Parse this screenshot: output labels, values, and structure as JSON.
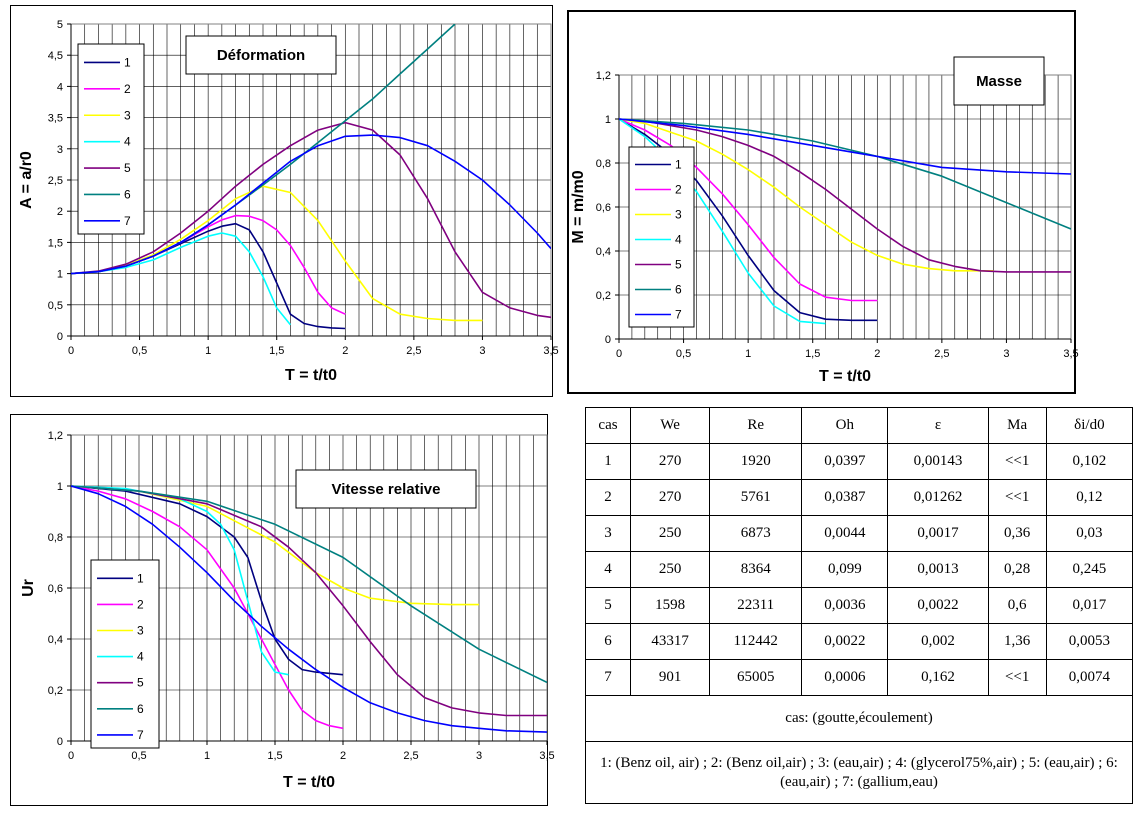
{
  "chart_data": [
    {
      "type": "line",
      "title": "Déformation",
      "xlabel": "T = t/t0",
      "ylabel": "A = a/r0",
      "xlim": [
        0,
        3.5
      ],
      "ylim": [
        0,
        5
      ],
      "xticks": [
        "0",
        "0,5",
        "1",
        "1,5",
        "2",
        "2,5",
        "3",
        "3,5"
      ],
      "yticks": [
        "0",
        "0,5",
        "1",
        "1,5",
        "2",
        "2,5",
        "3",
        "3,5",
        "4",
        "4,5",
        "5"
      ],
      "legend": "top-left",
      "grid": true,
      "series": [
        {
          "name": "1",
          "color": "#000080",
          "x": [
            0,
            0.2,
            0.4,
            0.6,
            0.8,
            1.0,
            1.1,
            1.2,
            1.3,
            1.4,
            1.5,
            1.6,
            1.7,
            1.8,
            1.9,
            2.0
          ],
          "y": [
            1,
            1.03,
            1.12,
            1.28,
            1.48,
            1.68,
            1.76,
            1.8,
            1.7,
            1.35,
            0.85,
            0.35,
            0.2,
            0.15,
            0.13,
            0.12
          ]
        },
        {
          "name": "2",
          "color": "#ff00ff",
          "x": [
            0,
            0.2,
            0.4,
            0.6,
            0.8,
            1.0,
            1.1,
            1.2,
            1.3,
            1.4,
            1.5,
            1.6,
            1.7,
            1.8,
            1.9,
            2.0
          ],
          "y": [
            1,
            1.03,
            1.12,
            1.28,
            1.5,
            1.75,
            1.86,
            1.93,
            1.92,
            1.85,
            1.7,
            1.45,
            1.1,
            0.7,
            0.45,
            0.35
          ]
        },
        {
          "name": "3",
          "color": "#ffff00",
          "x": [
            0,
            0.2,
            0.4,
            0.6,
            0.8,
            1.0,
            1.2,
            1.4,
            1.6,
            1.8,
            2.0,
            2.2,
            2.4,
            2.6,
            2.8,
            3.0
          ],
          "y": [
            1,
            1.03,
            1.13,
            1.3,
            1.55,
            1.85,
            2.2,
            2.4,
            2.3,
            1.85,
            1.2,
            0.6,
            0.35,
            0.28,
            0.25,
            0.25
          ]
        },
        {
          "name": "4",
          "color": "#00ffff",
          "x": [
            0,
            0.2,
            0.4,
            0.6,
            0.8,
            1.0,
            1.1,
            1.2,
            1.3,
            1.4,
            1.5,
            1.6
          ],
          "y": [
            1,
            1.03,
            1.1,
            1.22,
            1.42,
            1.6,
            1.65,
            1.6,
            1.35,
            0.95,
            0.45,
            0.18
          ]
        },
        {
          "name": "5",
          "color": "#800080",
          "x": [
            0,
            0.2,
            0.4,
            0.6,
            0.8,
            1.0,
            1.2,
            1.4,
            1.6,
            1.8,
            2.0,
            2.2,
            2.4,
            2.6,
            2.8,
            3.0,
            3.2,
            3.4,
            3.5
          ],
          "y": [
            1,
            1.04,
            1.15,
            1.35,
            1.65,
            2.0,
            2.4,
            2.75,
            3.05,
            3.3,
            3.42,
            3.3,
            2.9,
            2.2,
            1.35,
            0.7,
            0.45,
            0.33,
            0.3
          ]
        },
        {
          "name": "6",
          "color": "#008080",
          "x": [
            0,
            0.2,
            0.4,
            0.6,
            0.8,
            1.0,
            1.2,
            1.4,
            1.6,
            1.8,
            2.0,
            2.2,
            2.4,
            2.6,
            2.8
          ],
          "y": [
            1,
            1.03,
            1.12,
            1.28,
            1.5,
            1.78,
            2.1,
            2.42,
            2.75,
            3.1,
            3.45,
            3.8,
            4.2,
            4.6,
            5.0
          ]
        },
        {
          "name": "7",
          "color": "#0000ff",
          "x": [
            0,
            0.2,
            0.4,
            0.6,
            0.8,
            1.0,
            1.2,
            1.4,
            1.6,
            1.8,
            2.0,
            2.2,
            2.4,
            2.6,
            2.8,
            3.0,
            3.2,
            3.4,
            3.5
          ],
          "y": [
            1,
            1.03,
            1.12,
            1.28,
            1.5,
            1.78,
            2.1,
            2.45,
            2.8,
            3.05,
            3.2,
            3.22,
            3.18,
            3.05,
            2.8,
            2.5,
            2.1,
            1.65,
            1.4
          ]
        }
      ]
    },
    {
      "type": "line",
      "title": "Masse",
      "xlabel": "T = t/t0",
      "ylabel": "M = m/m0",
      "xlim": [
        0,
        3.5
      ],
      "ylim": [
        0,
        1.2
      ],
      "xticks": [
        "0",
        "0,5",
        "1",
        "1,5",
        "2",
        "2,5",
        "3",
        "3,5"
      ],
      "yticks": [
        "0",
        "0,2",
        "0,4",
        "0,6",
        "0,8",
        "1",
        "1,2"
      ],
      "legend": "bottom-left",
      "grid": true,
      "series": [
        {
          "name": "1",
          "color": "#000080",
          "x": [
            0,
            0.2,
            0.4,
            0.6,
            0.8,
            1.0,
            1.2,
            1.4,
            1.6,
            1.8,
            2.0
          ],
          "y": [
            1,
            0.93,
            0.84,
            0.72,
            0.56,
            0.38,
            0.22,
            0.12,
            0.09,
            0.085,
            0.085
          ]
        },
        {
          "name": "2",
          "color": "#ff00ff",
          "x": [
            0,
            0.2,
            0.4,
            0.6,
            0.8,
            1.0,
            1.2,
            1.4,
            1.6,
            1.8,
            2.0
          ],
          "y": [
            1,
            0.95,
            0.88,
            0.78,
            0.66,
            0.52,
            0.37,
            0.25,
            0.19,
            0.175,
            0.175
          ]
        },
        {
          "name": "3",
          "color": "#ffff00",
          "x": [
            0,
            0.2,
            0.4,
            0.6,
            0.8,
            1.0,
            1.2,
            1.4,
            1.6,
            1.8,
            2.0,
            2.2,
            2.4,
            2.6,
            2.8,
            2.9
          ],
          "y": [
            1,
            0.98,
            0.94,
            0.9,
            0.84,
            0.77,
            0.69,
            0.6,
            0.52,
            0.44,
            0.38,
            0.34,
            0.32,
            0.31,
            0.31,
            0.31
          ]
        },
        {
          "name": "4",
          "color": "#00ffff",
          "x": [
            0,
            0.2,
            0.4,
            0.6,
            0.8,
            1.0,
            1.2,
            1.4,
            1.6
          ],
          "y": [
            1,
            0.92,
            0.81,
            0.67,
            0.49,
            0.3,
            0.15,
            0.08,
            0.07
          ]
        },
        {
          "name": "5",
          "color": "#800080",
          "x": [
            0,
            0.2,
            0.4,
            0.6,
            0.8,
            1.0,
            1.2,
            1.4,
            1.6,
            1.8,
            2.0,
            2.2,
            2.4,
            2.6,
            2.8,
            3.0,
            3.2,
            3.5
          ],
          "y": [
            1,
            0.99,
            0.97,
            0.95,
            0.92,
            0.88,
            0.83,
            0.76,
            0.68,
            0.59,
            0.5,
            0.42,
            0.36,
            0.33,
            0.31,
            0.305,
            0.305,
            0.305
          ]
        },
        {
          "name": "6",
          "color": "#008080",
          "x": [
            0,
            0.5,
            1.0,
            1.5,
            2.0,
            2.5,
            3.0,
            3.5
          ],
          "y": [
            1,
            0.98,
            0.95,
            0.9,
            0.83,
            0.74,
            0.62,
            0.5
          ]
        },
        {
          "name": "7",
          "color": "#0000ff",
          "x": [
            0,
            0.5,
            1.0,
            1.5,
            2.0,
            2.5,
            3.0,
            3.5
          ],
          "y": [
            1,
            0.97,
            0.93,
            0.88,
            0.83,
            0.78,
            0.76,
            0.75
          ]
        }
      ]
    },
    {
      "type": "line",
      "title": "Vitesse relative",
      "xlabel": "T = t/t0",
      "ylabel": "Ur",
      "xlim": [
        0,
        3.5
      ],
      "ylim": [
        0,
        1.2
      ],
      "xticks": [
        "0",
        "0,5",
        "1",
        "1,5",
        "2",
        "2,5",
        "3",
        "3,5"
      ],
      "yticks": [
        "0",
        "0,2",
        "0,4",
        "0,6",
        "0,8",
        "1",
        "1,2"
      ],
      "legend": "bottom-left",
      "grid": true,
      "series": [
        {
          "name": "1",
          "color": "#000080",
          "x": [
            0,
            0.4,
            0.8,
            1.0,
            1.2,
            1.3,
            1.4,
            1.5,
            1.6,
            1.7,
            1.8,
            2.0
          ],
          "y": [
            1,
            0.98,
            0.93,
            0.88,
            0.8,
            0.72,
            0.55,
            0.4,
            0.32,
            0.28,
            0.27,
            0.26
          ]
        },
        {
          "name": "2",
          "color": "#ff00ff",
          "x": [
            0,
            0.2,
            0.4,
            0.6,
            0.8,
            1.0,
            1.2,
            1.3,
            1.4,
            1.5,
            1.6,
            1.7,
            1.8,
            1.9,
            2.0
          ],
          "y": [
            1,
            0.98,
            0.95,
            0.9,
            0.84,
            0.75,
            0.6,
            0.5,
            0.4,
            0.3,
            0.2,
            0.12,
            0.08,
            0.06,
            0.05
          ]
        },
        {
          "name": "3",
          "color": "#ffff00",
          "x": [
            0,
            0.5,
            1.0,
            1.5,
            1.8,
            2.0,
            2.2,
            2.5,
            2.8,
            3.0
          ],
          "y": [
            1,
            0.98,
            0.92,
            0.78,
            0.66,
            0.6,
            0.56,
            0.54,
            0.535,
            0.535
          ]
        },
        {
          "name": "4",
          "color": "#00ffff",
          "x": [
            0,
            0.4,
            0.8,
            1.0,
            1.1,
            1.2,
            1.3,
            1.4,
            1.5,
            1.6
          ],
          "y": [
            1,
            0.99,
            0.95,
            0.9,
            0.85,
            0.75,
            0.55,
            0.35,
            0.27,
            0.26
          ]
        },
        {
          "name": "5",
          "color": "#800080",
          "x": [
            0,
            0.5,
            1.0,
            1.4,
            1.6,
            1.8,
            2.0,
            2.2,
            2.4,
            2.6,
            2.8,
            3.0,
            3.2,
            3.5
          ],
          "y": [
            1,
            0.98,
            0.93,
            0.84,
            0.76,
            0.66,
            0.53,
            0.39,
            0.26,
            0.17,
            0.13,
            0.11,
            0.1,
            0.1
          ]
        },
        {
          "name": "6",
          "color": "#008080",
          "x": [
            0,
            0.5,
            1.0,
            1.5,
            2.0,
            2.5,
            3.0,
            3.5
          ],
          "y": [
            1,
            0.98,
            0.94,
            0.85,
            0.72,
            0.53,
            0.36,
            0.23
          ]
        },
        {
          "name": "7",
          "color": "#0000ff",
          "x": [
            0,
            0.2,
            0.4,
            0.6,
            0.8,
            1.0,
            1.2,
            1.4,
            1.6,
            1.8,
            2.0,
            2.2,
            2.4,
            2.6,
            2.8,
            3.0,
            3.2,
            3.5
          ],
          "y": [
            1,
            0.97,
            0.92,
            0.85,
            0.76,
            0.66,
            0.55,
            0.45,
            0.36,
            0.28,
            0.21,
            0.15,
            0.11,
            0.08,
            0.06,
            0.05,
            0.04,
            0.035
          ]
        }
      ]
    }
  ],
  "table": {
    "headers": [
      "cas",
      "We",
      "Re",
      "Oh",
      "ε",
      "Ma",
      "δi/d0"
    ],
    "rows": [
      [
        "1",
        "270",
        "1920",
        "0,0397",
        "0,00143",
        "<<1",
        "0,102"
      ],
      [
        "2",
        "270",
        "5761",
        "0,0387",
        "0,01262",
        "<<1",
        "0,12"
      ],
      [
        "3",
        "250",
        "6873",
        "0,0044",
        "0,0017",
        "0,36",
        "0,03"
      ],
      [
        "4",
        "250",
        "8364",
        "0,099",
        "0,0013",
        "0,28",
        "0,245"
      ],
      [
        "5",
        "1598",
        "22311",
        "0,0036",
        "0,0022",
        "0,6",
        "0,017"
      ],
      [
        "6",
        "43317",
        "112442",
        "0,0022",
        "0,002",
        "1,36",
        "0,0053"
      ],
      [
        "7",
        "901",
        "65005",
        "0,0006",
        "0,162",
        "<<1",
        "0,0074"
      ]
    ],
    "note_header": "cas: (goutte,écoulement)",
    "note_cases": "1: (Benz oil, air) ; 2: (Benz oil,air) ; 3: (eau,air) ; 4: (glycerol75%,air) ; 5: (eau,air) ; 6: (eau,air) ; 7: (gallium,eau)"
  }
}
